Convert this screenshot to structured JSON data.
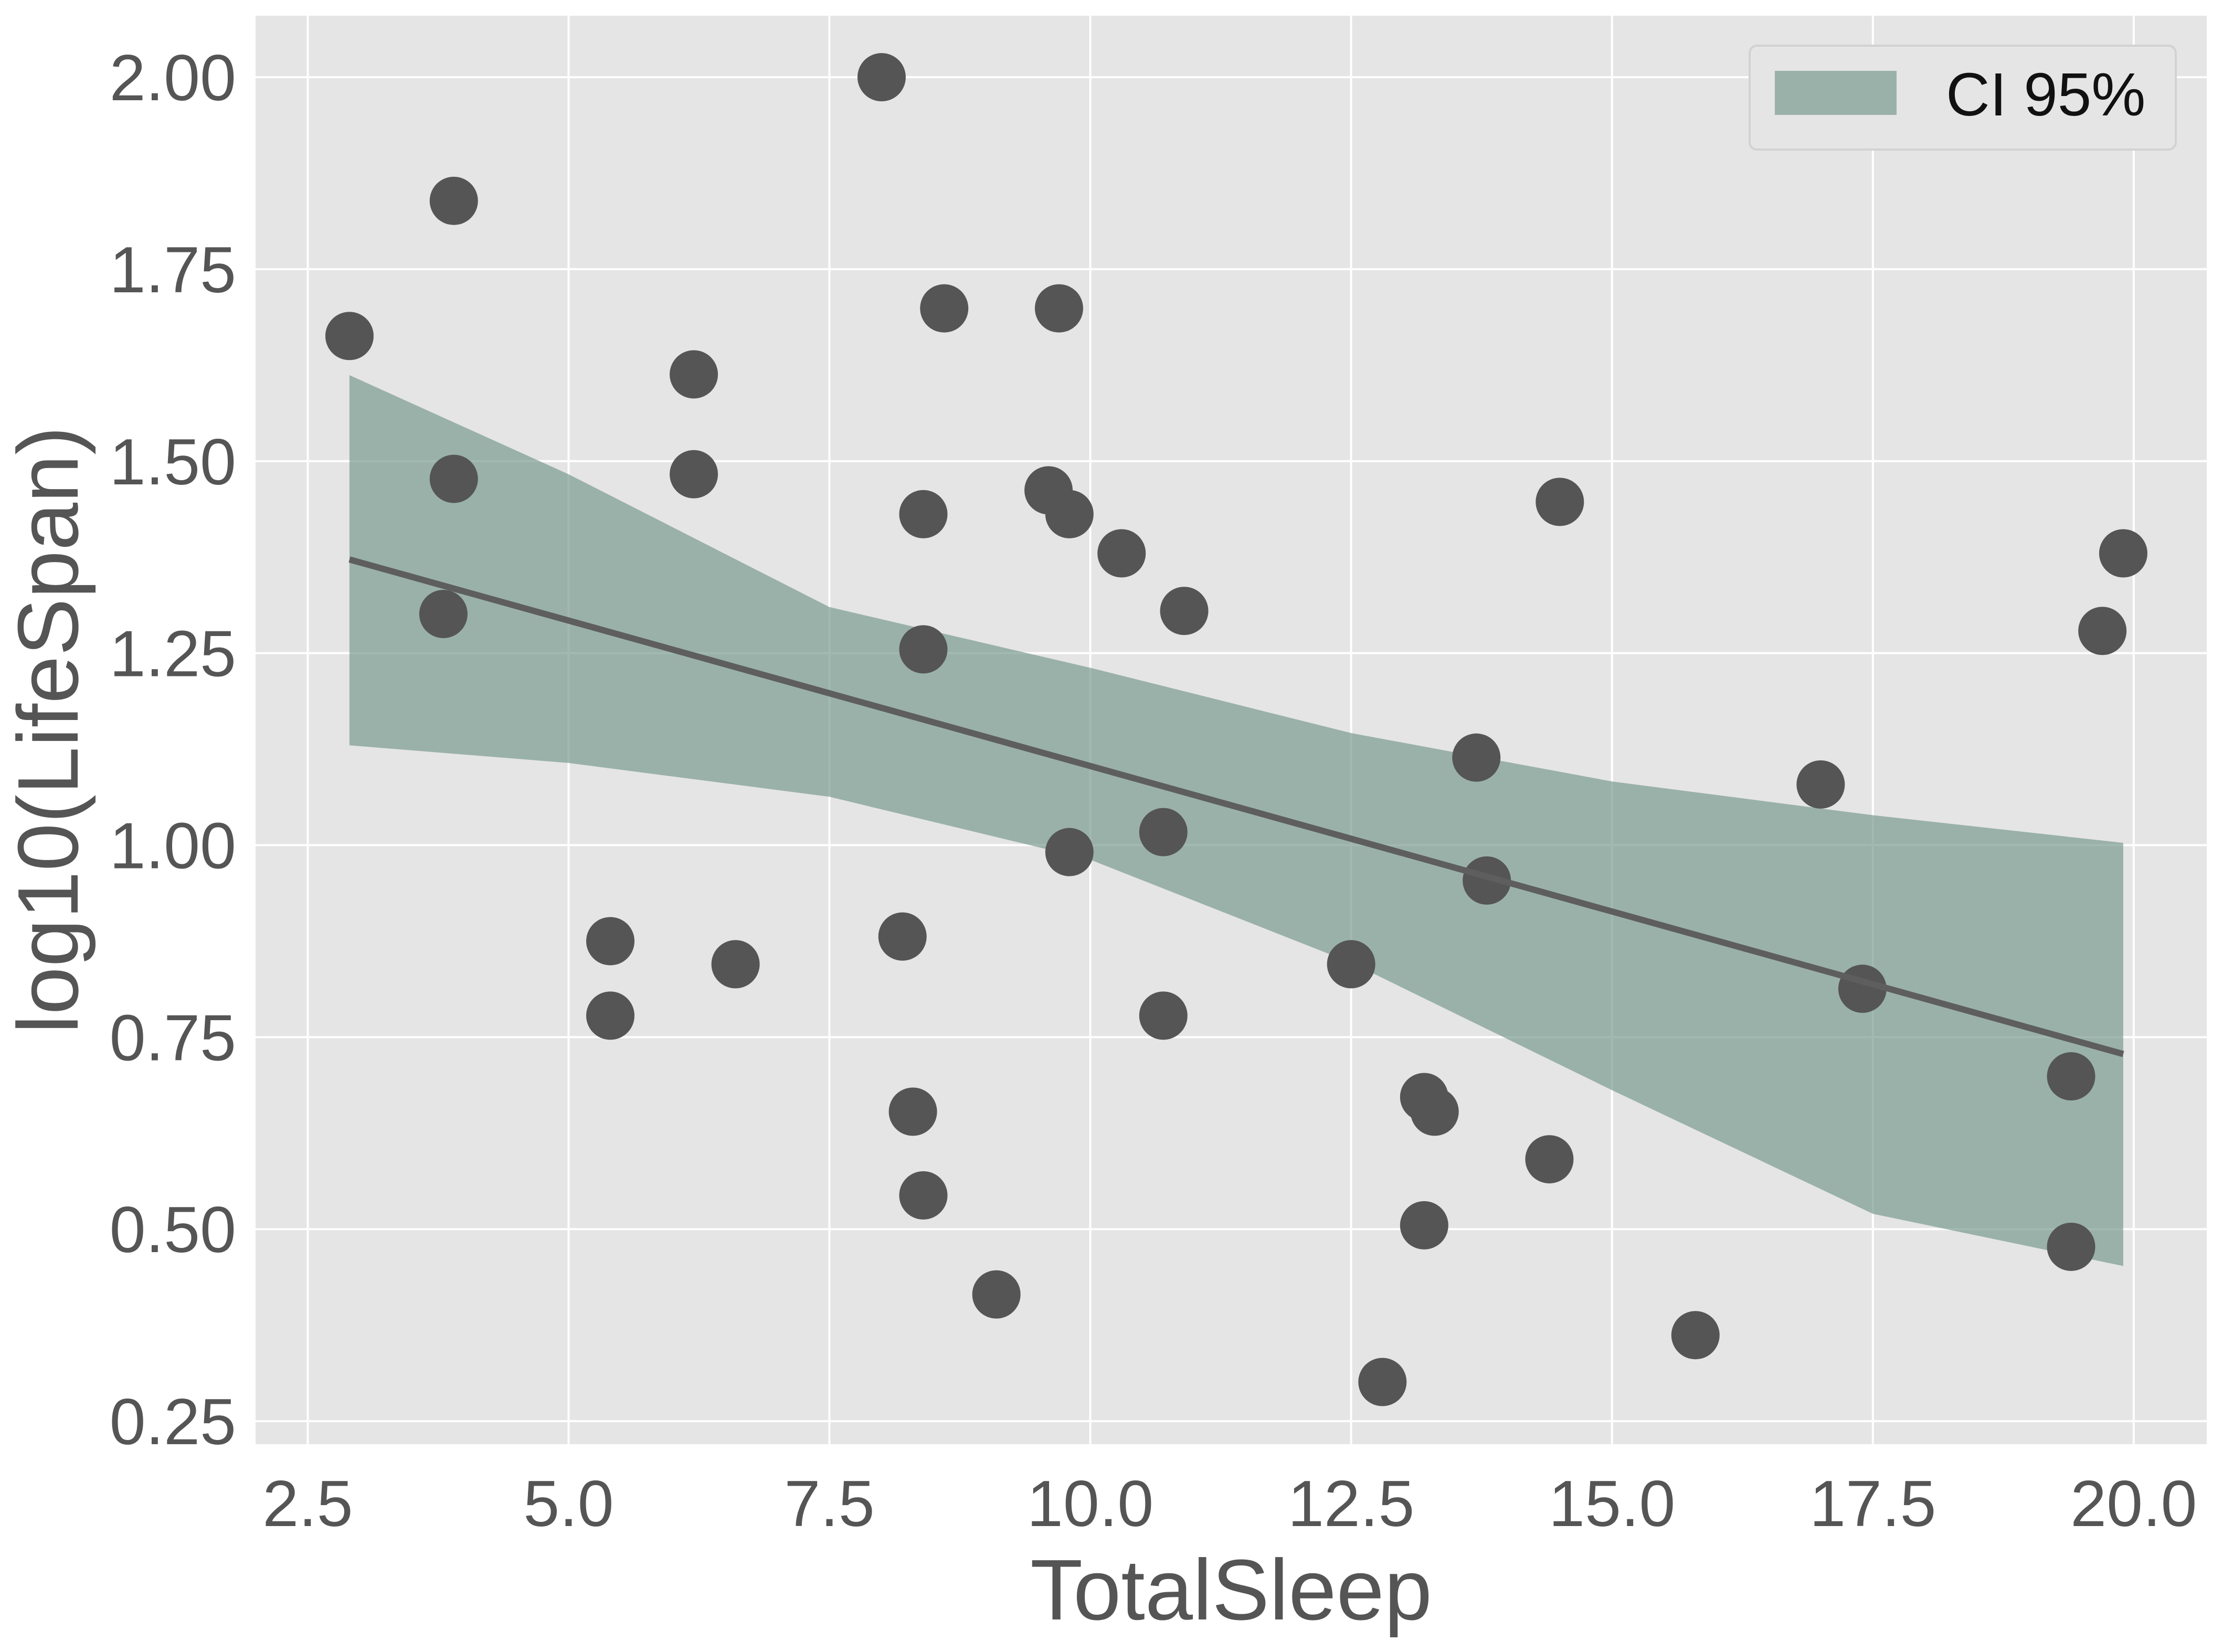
{
  "chart_data": {
    "type": "scatter",
    "title": "",
    "xlabel": "TotalSleep",
    "ylabel": "log10(LifeSpan)",
    "xlim": [
      2.0,
      20.7
    ],
    "ylim": [
      0.22,
      2.08
    ],
    "xticks": [
      2.5,
      5.0,
      7.5,
      10.0,
      12.5,
      15.0,
      17.5,
      20.0
    ],
    "xtick_labels": [
      "2.5",
      "5.0",
      "7.5",
      "10.0",
      "12.5",
      "15.0",
      "17.5",
      "20.0"
    ],
    "yticks": [
      0.25,
      0.5,
      0.75,
      1.0,
      1.25,
      1.5,
      1.75,
      2.0
    ],
    "ytick_labels": [
      "0.25",
      "0.50",
      "0.75",
      "1.00",
      "1.25",
      "1.50",
      "1.75",
      "2.00"
    ],
    "grid": true,
    "legend": {
      "position": "top-right",
      "label": "CI 95%"
    },
    "colors": {
      "background": "#e5e5e5",
      "grid": "#ffffff",
      "points": "#555555",
      "regression_line": "#5e5e5e",
      "ci_band": "#7a9b92",
      "axis_text": "#555555"
    },
    "series": [
      {
        "name": "observations",
        "x": [
          2.9,
          3.9,
          3.9,
          3.8,
          5.4,
          5.4,
          6.2,
          6.2,
          6.6,
          8.0,
          8.6,
          8.4,
          8.4,
          8.2,
          8.3,
          8.4,
          9.1,
          9.7,
          9.6,
          9.8,
          9.8,
          10.3,
          10.9,
          10.7,
          10.7,
          12.5,
          12.8,
          13.2,
          13.3,
          13.2,
          13.7,
          13.8,
          14.5,
          14.4,
          15.8,
          17.0,
          17.4,
          19.4,
          19.4,
          19.7,
          19.9
        ],
        "y": [
          1.663,
          1.839,
          1.477,
          1.301,
          0.875,
          0.778,
          1.613,
          1.483,
          0.845,
          2.0,
          1.699,
          1.431,
          1.255,
          0.881,
          0.653,
          0.544,
          0.415,
          1.699,
          1.462,
          1.431,
          0.991,
          1.38,
          1.305,
          1.017,
          0.778,
          0.845,
          0.301,
          0.672,
          0.653,
          0.505,
          1.114,
          0.954,
          1.447,
          0.591,
          0.362,
          1.079,
          0.813,
          0.699,
          0.477,
          1.279,
          1.38
        ]
      },
      {
        "name": "regression",
        "x": [
          2.9,
          19.9
        ],
        "y": [
          1.372,
          0.728
        ]
      },
      {
        "name": "CI 95%",
        "x": [
          2.9,
          5.0,
          7.5,
          10.0,
          12.5,
          15.0,
          17.5,
          19.9
        ],
        "lower": [
          1.13,
          1.107,
          1.063,
          0.981,
          0.847,
          0.681,
          0.52,
          0.452
        ],
        "upper": [
          1.612,
          1.483,
          1.31,
          1.231,
          1.146,
          1.083,
          1.039,
          1.003
        ]
      }
    ]
  }
}
